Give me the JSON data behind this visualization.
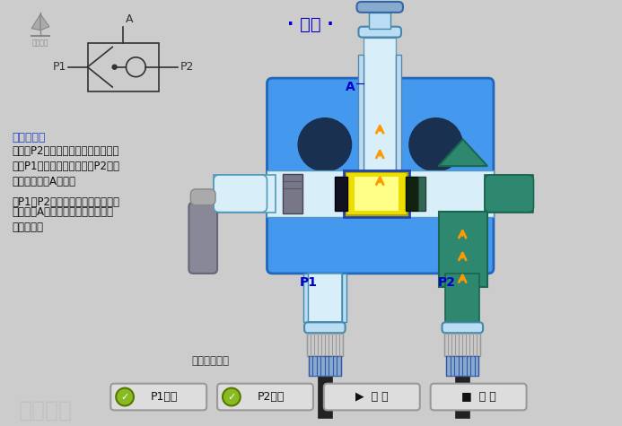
{
  "title": "· 梭阀 ·",
  "title_color": "#0000CC",
  "bg_color": "#CCCCCC",
  "func_title": "功能说明：",
  "func_text1": "当通道P2进气时，将阀芯推向左边，",
  "func_text2": "通路P1被关闭，于是气体从P2进入",
  "func_text3": "阀体，从通道A流出。",
  "func_text4": "当P1、P2同时进气时，哪端气体的",
  "func_text5": "压力高，A就与哪端相通，另一端就",
  "func_text6": "自动关闭。",
  "status_text": "阀芯向左移动",
  "btn1": "P1进气",
  "btn2": "P2进气",
  "btn3": "▶  播 放",
  "btn4": "■  复 位",
  "body_blue": "#4499EE",
  "body_blue_dark": "#2266BB",
  "light_blue": "#BBDDF4",
  "pale_blue": "#D8EEF8",
  "dark_navy": "#1A3050",
  "teal_green": "#2E8870",
  "teal_light": "#3DA88A",
  "yellow_spool": "#EEDD00",
  "orange_arrow": "#FF9900",
  "gray_connector": "#AAAAAA",
  "silver": "#C8C8C8",
  "blue_connector": "#88AACC",
  "dark_tube": "#555555",
  "btn_bg": "#DDDDDD",
  "btn_border": "#999999",
  "green_check": "#88BB22",
  "white": "#FFFFFF",
  "black": "#000000"
}
